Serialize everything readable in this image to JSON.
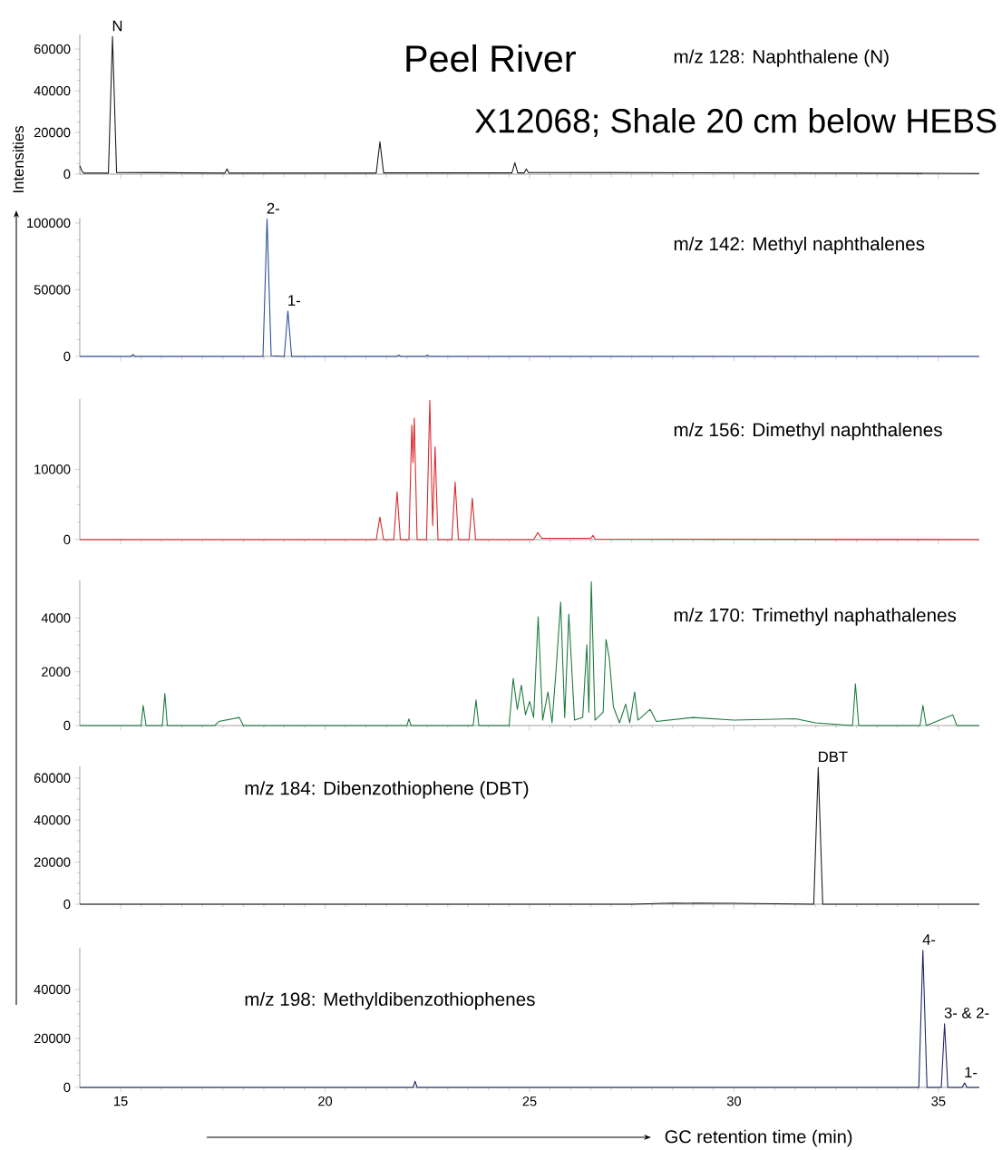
{
  "chart_data": [
    {
      "type": "line",
      "title": "Peel River",
      "subtitle": "X12068; Shale 20 cm below HEBS",
      "ylabel": "Intensities",
      "tick_labels": "y",
      "annotations": [
        "m/z 128: Naphthalene (N)",
        {
          "text": "N",
          "x": 14.8,
          "y": 66000
        }
      ],
      "xlim": [
        14,
        36
      ],
      "xticks": [
        15,
        20,
        25,
        30,
        35
      ],
      "ylim": [
        0,
        67000
      ],
      "yticks": [
        0,
        20000,
        40000,
        60000
      ],
      "series": [
        {
          "color": "#1a1a1a",
          "x": [
            14.0,
            14.05,
            14.1,
            14.7,
            14.8,
            14.9,
            17.55,
            17.6,
            17.65,
            21.25,
            21.34,
            21.43,
            24.57,
            24.64,
            24.71,
            24.87,
            24.92,
            24.97,
            33.0,
            36.0
          ],
          "values": [
            4000,
            1500,
            500,
            500,
            66000,
            800,
            500,
            2500,
            500,
            500,
            15500,
            600,
            600,
            5500,
            600,
            600,
            2500,
            800,
            500,
            300
          ]
        }
      ]
    },
    {
      "type": "line",
      "tick_labels": "y",
      "annotations": [
        "m/z 142: Methyl naphthalenes",
        {
          "text": "2-",
          "x": 18.58,
          "y": 103000
        },
        {
          "text": "1-",
          "x": 19.09,
          "y": 34000
        }
      ],
      "xlim": [
        14,
        36
      ],
      "xticks": [
        15,
        20,
        25,
        30,
        35
      ],
      "ylim": [
        0,
        104000
      ],
      "yticks": [
        0,
        50000,
        100000
      ],
      "series": [
        {
          "color": "#2a4a9a",
          "x": [
            14.0,
            15.25,
            15.3,
            15.35,
            18.48,
            18.58,
            18.68,
            19.0,
            19.09,
            19.18,
            21.75,
            21.8,
            21.85,
            22.45,
            22.5,
            22.55,
            36.0
          ],
          "values": [
            0,
            0,
            1500,
            0,
            0,
            103000,
            500,
            0,
            34000,
            0,
            0,
            1000,
            0,
            0,
            1000,
            0,
            0
          ]
        }
      ]
    },
    {
      "type": "line",
      "tick_labels": "y",
      "annotations": [
        "m/z 156: Dimethyl naphthalenes"
      ],
      "xlim": [
        14,
        36
      ],
      "xticks": [
        15,
        20,
        25,
        30,
        35
      ],
      "ylim": [
        0,
        20000
      ],
      "yticks": [
        0,
        10000
      ],
      "series": [
        {
          "color": "#d9262a",
          "x": [
            14.0,
            21.25,
            21.34,
            21.43,
            21.68,
            21.76,
            21.84,
            22.05,
            22.12,
            22.15,
            22.18,
            22.25,
            22.48,
            22.56,
            22.63,
            22.69,
            22.76,
            23.1,
            23.18,
            23.26,
            23.52,
            23.6,
            23.68,
            25.1,
            25.2,
            25.3,
            26.5,
            26.55,
            26.6,
            36.0
          ],
          "values": [
            0,
            0,
            3200,
            0,
            0,
            6800,
            0,
            0,
            16300,
            11000,
            17300,
            0,
            0,
            19800,
            2000,
            13200,
            0,
            0,
            8200,
            0,
            0,
            5900,
            0,
            0,
            1000,
            200,
            200,
            600,
            100,
            0
          ]
        }
      ]
    },
    {
      "type": "line",
      "tick_labels": "y",
      "annotations": [
        "m/z 170: Trimethyl naphathalenes"
      ],
      "xlim": [
        14,
        36
      ],
      "xticks": [
        15,
        20,
        25,
        30,
        35
      ],
      "ylim": [
        0,
        5400
      ],
      "yticks": [
        0,
        2000,
        4000
      ],
      "series": [
        {
          "color": "#1a7a3a",
          "x": [
            14.0,
            15.5,
            15.55,
            15.62,
            16.02,
            16.08,
            16.14,
            17.3,
            17.4,
            17.9,
            18.0,
            22.0,
            22.05,
            22.1,
            23.62,
            23.69,
            23.76,
            24.5,
            24.6,
            24.7,
            24.8,
            24.9,
            25.0,
            25.1,
            25.21,
            25.32,
            25.45,
            25.55,
            25.65,
            25.76,
            25.86,
            25.96,
            26.1,
            26.3,
            26.4,
            26.45,
            26.51,
            26.6,
            26.8,
            26.87,
            26.95,
            27.05,
            27.2,
            27.35,
            27.45,
            27.57,
            27.65,
            27.95,
            28.1,
            29.0,
            30.0,
            31.5,
            32.0,
            32.9,
            32.97,
            33.05,
            34.55,
            34.62,
            34.7,
            35.35,
            35.45,
            36.0
          ],
          "values": [
            0,
            0,
            750,
            0,
            0,
            1200,
            0,
            0,
            150,
            300,
            0,
            0,
            250,
            0,
            0,
            950,
            0,
            0,
            1750,
            600,
            1500,
            400,
            900,
            300,
            4050,
            200,
            1250,
            100,
            2100,
            4600,
            300,
            4150,
            200,
            300,
            3000,
            500,
            5350,
            200,
            500,
            3200,
            2500,
            700,
            100,
            800,
            100,
            1250,
            200,
            600,
            150,
            300,
            200,
            250,
            100,
            0,
            1550,
            0,
            0,
            750,
            0,
            400,
            0,
            0
          ]
        }
      ]
    },
    {
      "type": "line",
      "tick_labels": "y",
      "annotations": [
        "m/z 184: Dibenzothiophene (DBT)",
        {
          "text": "DBT",
          "x": 32.06,
          "y": 65000
        }
      ],
      "xlim": [
        14,
        36
      ],
      "xticks": [
        15,
        20,
        25,
        30,
        35
      ],
      "ylim": [
        0,
        65500
      ],
      "yticks": [
        0,
        20000,
        40000,
        60000
      ],
      "series": [
        {
          "color": "#1a1a1a",
          "x": [
            14.0,
            27.5,
            28.5,
            30.0,
            31.0,
            31.95,
            32.06,
            32.17,
            36.0
          ],
          "values": [
            0,
            0,
            500,
            400,
            200,
            0,
            65000,
            0,
            0
          ]
        }
      ]
    },
    {
      "type": "line",
      "xlabel": "GC retention time (min)",
      "annotations": [
        "m/z 198: Methyldibenzothiophenes",
        {
          "text": "4-",
          "x": 34.62,
          "y": 56000
        },
        {
          "text": "3- & 2-",
          "x": 35.15,
          "y": 26000
        },
        {
          "text": "1-",
          "x": 35.64,
          "y": 1800
        }
      ],
      "xlim": [
        14,
        36
      ],
      "xticks": [
        15,
        20,
        25,
        30,
        35
      ],
      "ylim": [
        0,
        57000
      ],
      "yticks": [
        0,
        20000,
        40000
      ],
      "series": [
        {
          "color": "#1c2466",
          "x": [
            14.0,
            22.15,
            22.2,
            22.25,
            34.52,
            34.62,
            34.72,
            35.07,
            35.15,
            35.23,
            35.58,
            35.64,
            35.7,
            36.0
          ],
          "values": [
            0,
            0,
            2500,
            0,
            0,
            56000,
            0,
            0,
            26000,
            0,
            0,
            1800,
            0,
            0
          ]
        }
      ]
    }
  ]
}
